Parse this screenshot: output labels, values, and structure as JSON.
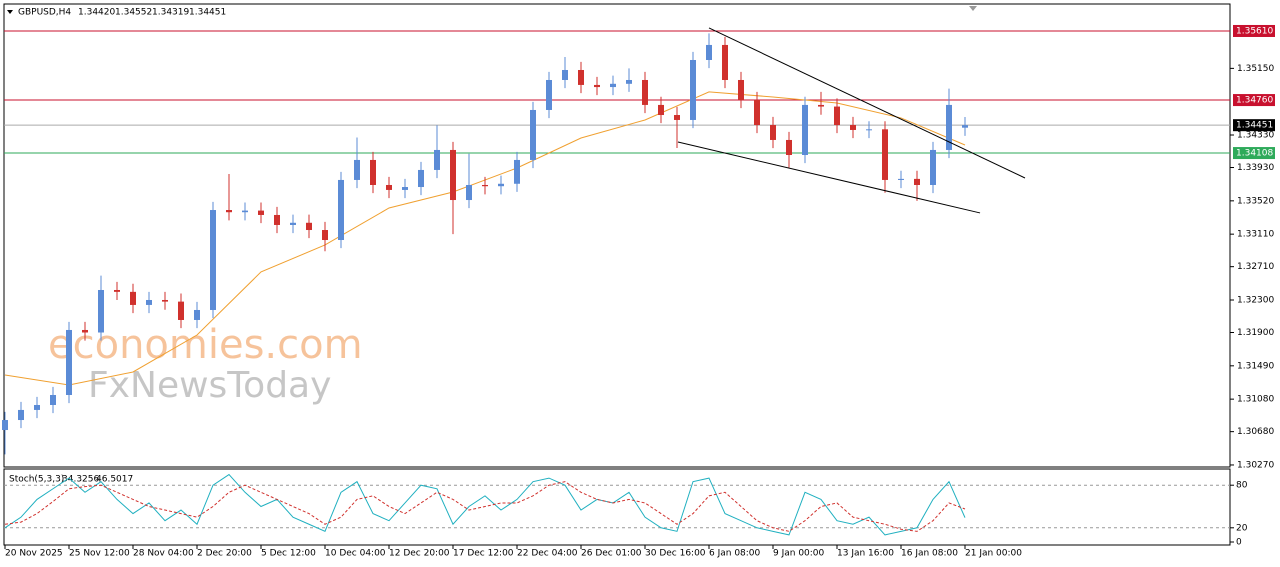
{
  "chart_data": [
    {
      "type": "candlestick",
      "header": {
        "symbol": "GBPUSD,H4",
        "ohlc": [
          "1.34420",
          "1.34552",
          "1.34319",
          "1.34451"
        ]
      },
      "watermark": [
        "economies.com",
        "FxNewsToday"
      ],
      "categories": [
        "20 Nov 2025",
        null,
        null,
        null,
        "25 Nov 12:00",
        null,
        null,
        null,
        "28 Nov 04:00",
        null,
        null,
        null,
        "2 Dec 20:00",
        null,
        null,
        null,
        "5 Dec 12:00",
        null,
        null,
        null,
        "10 Dec 04:00",
        null,
        null,
        null,
        "12 Dec 20:00",
        null,
        null,
        null,
        "17 Dec 12:00",
        null,
        null,
        null,
        "22 Dec 04:00",
        null,
        null,
        null,
        "26 Dec 01:00",
        null,
        null,
        null,
        "30 Dec 16:00",
        null,
        null,
        null,
        "6 Jan 08:00",
        null,
        null,
        null,
        "9 Jan 00:00",
        null,
        null,
        null,
        "13 Jan 16:00",
        null,
        null,
        null,
        "16 Jan 08:00",
        null,
        null,
        null,
        "21 Jan 00:00"
      ],
      "open": [
        1.307,
        1.30823,
        1.30947,
        1.31008,
        1.31131,
        1.31931,
        1.319,
        1.32423,
        1.324,
        1.32239,
        1.323,
        1.3228,
        1.32054,
        1.32177,
        1.33407,
        1.3338,
        1.334,
        1.33346,
        1.33223,
        1.3325,
        1.33161,
        1.33038,
        1.33777,
        1.34023,
        1.33715,
        1.33654,
        1.3369,
        1.339,
        1.34146,
        1.3353,
        1.33715,
        1.337,
        1.3373,
        1.34023,
        1.34638,
        1.35007,
        1.3513,
        1.34946,
        1.3492,
        1.3496,
        1.35007,
        1.347,
        1.34576,
        1.34515,
        1.35253,
        1.35438,
        1.35007,
        1.34761,
        1.34453,
        1.34269,
        1.34084,
        1.347,
        1.3468,
        1.34453,
        1.34392,
        1.344,
        1.33777,
        1.3379,
        1.33715,
        1.34146,
        1.3442
      ],
      "high": [
        1.30923,
        1.31047,
        1.31108,
        1.31231,
        1.32031,
        1.32031,
        1.326,
        1.32523,
        1.325,
        1.324,
        1.324,
        1.3238,
        1.32277,
        1.33507,
        1.3385,
        1.335,
        1.335,
        1.33446,
        1.3335,
        1.3335,
        1.33261,
        1.33877,
        1.343,
        1.34123,
        1.33815,
        1.3379,
        1.34,
        1.3445,
        1.34246,
        1.341,
        1.33815,
        1.3383,
        1.34123,
        1.34738,
        1.35107,
        1.3529,
        1.3523,
        1.35046,
        1.3506,
        1.3515,
        1.35107,
        1.348,
        1.34676,
        1.35353,
        1.3558,
        1.35538,
        1.35107,
        1.34861,
        1.34553,
        1.34369,
        1.348,
        1.3486,
        1.3478,
        1.34553,
        1.345,
        1.345,
        1.3389,
        1.3389,
        1.34246,
        1.349,
        1.34552
      ],
      "low": [
        1.304,
        1.30723,
        1.30847,
        1.30908,
        1.31031,
        1.318,
        1.318,
        1.323,
        1.32139,
        1.32139,
        1.3218,
        1.31954,
        1.31954,
        1.32077,
        1.3328,
        1.3328,
        1.33246,
        1.33123,
        1.33123,
        1.33061,
        1.329,
        1.32938,
        1.33677,
        1.33615,
        1.33554,
        1.33554,
        1.3359,
        1.338,
        1.3311,
        1.3343,
        1.336,
        1.336,
        1.3363,
        1.33923,
        1.34538,
        1.34907,
        1.34846,
        1.3482,
        1.3482,
        1.3486,
        1.346,
        1.34476,
        1.3417,
        1.34415,
        1.35153,
        1.34907,
        1.34661,
        1.34353,
        1.34169,
        1.3393,
        1.33984,
        1.3458,
        1.34353,
        1.34292,
        1.34292,
        1.3362,
        1.33677,
        1.3352,
        1.33615,
        1.34046,
        1.34319
      ],
      "close": [
        1.30823,
        1.30947,
        1.31008,
        1.31131,
        1.31931,
        1.319,
        1.32423,
        1.324,
        1.32239,
        1.323,
        1.3228,
        1.32054,
        1.32177,
        1.33407,
        1.3338,
        1.334,
        1.33346,
        1.33223,
        1.3325,
        1.33161,
        1.33038,
        1.33777,
        1.34023,
        1.33715,
        1.33654,
        1.3369,
        1.339,
        1.34146,
        1.3353,
        1.33715,
        1.337,
        1.3373,
        1.34023,
        1.34638,
        1.35007,
        1.3513,
        1.34946,
        1.3492,
        1.3496,
        1.35007,
        1.347,
        1.34576,
        1.34515,
        1.35253,
        1.35438,
        1.35007,
        1.34761,
        1.34453,
        1.34269,
        1.34084,
        1.347,
        1.3468,
        1.34453,
        1.34392,
        1.344,
        1.33777,
        1.3379,
        1.33715,
        1.34146,
        1.347,
        1.34451
      ],
      "up_color": "#5b8bd6",
      "down_color": "#d0312d",
      "ma": {
        "x": [
          0,
          4,
          8,
          12,
          16,
          20,
          24,
          28,
          32,
          36,
          40,
          44,
          48,
          52,
          56,
          60
        ],
        "values": [
          1.31377,
          1.31254,
          1.31414,
          1.31869,
          1.32645,
          1.32977,
          1.33432,
          1.33629,
          1.33924,
          1.34293,
          1.34515,
          1.3486,
          1.34798,
          1.34724,
          1.3454,
          1.34207
        ],
        "color": "#f0a030"
      },
      "trendlines": [
        {
          "x": [
            44,
            63.75
          ],
          "y": [
            1.35647,
            1.33801
          ]
        },
        {
          "x": [
            42.06,
            60.94
          ],
          "y": [
            1.34244,
            1.33371
          ]
        }
      ],
      "trendline_color": "#000000",
      "levels": [
        {
          "value": 1.3561,
          "label": "1.35610",
          "color": "#c8102e"
        },
        {
          "value": 1.3476,
          "label": "1.34760",
          "color": "#c8102e"
        },
        {
          "value": 1.34451,
          "label": "1.34451",
          "color": "#000000"
        },
        {
          "value": 1.34108,
          "label": "1.34108",
          "color": "#2eaa5a"
        }
      ],
      "ylim": [
        1.30245,
        1.35942
      ],
      "yticks": [
        {
          "value": 1.3515,
          "label": "1.35150"
        },
        {
          "value": 1.3433,
          "label": "1.34330"
        },
        {
          "value": 1.3393,
          "label": "1.33930"
        },
        {
          "value": 1.3352,
          "label": "1.33520"
        },
        {
          "value": 1.3311,
          "label": "1.33110"
        },
        {
          "value": 1.3271,
          "label": "1.32710"
        },
        {
          "value": 1.323,
          "label": "1.32300"
        },
        {
          "value": 1.319,
          "label": "1.31900"
        },
        {
          "value": 1.3149,
          "label": "1.31490"
        },
        {
          "value": 1.3108,
          "label": "1.31080"
        },
        {
          "value": 1.3068,
          "label": "1.30680"
        },
        {
          "value": 1.3027,
          "label": "1.30270"
        }
      ]
    },
    {
      "type": "line",
      "title": "Stoch(5,3,3)",
      "series": [
        {
          "name": "34.3256",
          "color": "#20b0c0",
          "values": [
            20,
            35,
            60,
            75,
            90,
            70,
            85,
            60,
            40,
            55,
            30,
            45,
            25,
            80,
            95,
            70,
            50,
            60,
            35,
            25,
            15,
            70,
            85,
            40,
            30,
            55,
            80,
            75,
            25,
            50,
            65,
            45,
            60,
            85,
            90,
            80,
            45,
            60,
            55,
            70,
            35,
            20,
            15,
            85,
            90,
            40,
            30,
            20,
            15,
            10,
            70,
            60,
            30,
            25,
            35,
            10,
            15,
            20,
            60,
            85,
            34.3256
          ]
        },
        {
          "name": "46.5017",
          "color": "#d0312d",
          "dashed": true,
          "values": [
            25,
            28,
            40,
            57,
            75,
            78,
            80,
            70,
            60,
            50,
            45,
            40,
            35,
            50,
            70,
            80,
            70,
            60,
            50,
            40,
            25,
            35,
            60,
            65,
            50,
            40,
            55,
            70,
            60,
            45,
            50,
            55,
            55,
            65,
            80,
            85,
            70,
            60,
            55,
            60,
            55,
            40,
            25,
            40,
            65,
            70,
            50,
            30,
            20,
            15,
            30,
            50,
            55,
            35,
            30,
            25,
            18,
            15,
            30,
            55,
            46.5017
          ]
        }
      ],
      "ylim": [
        0,
        100
      ],
      "yticks": [
        80,
        20,
        0
      ],
      "levels": [
        80,
        20
      ]
    }
  ]
}
